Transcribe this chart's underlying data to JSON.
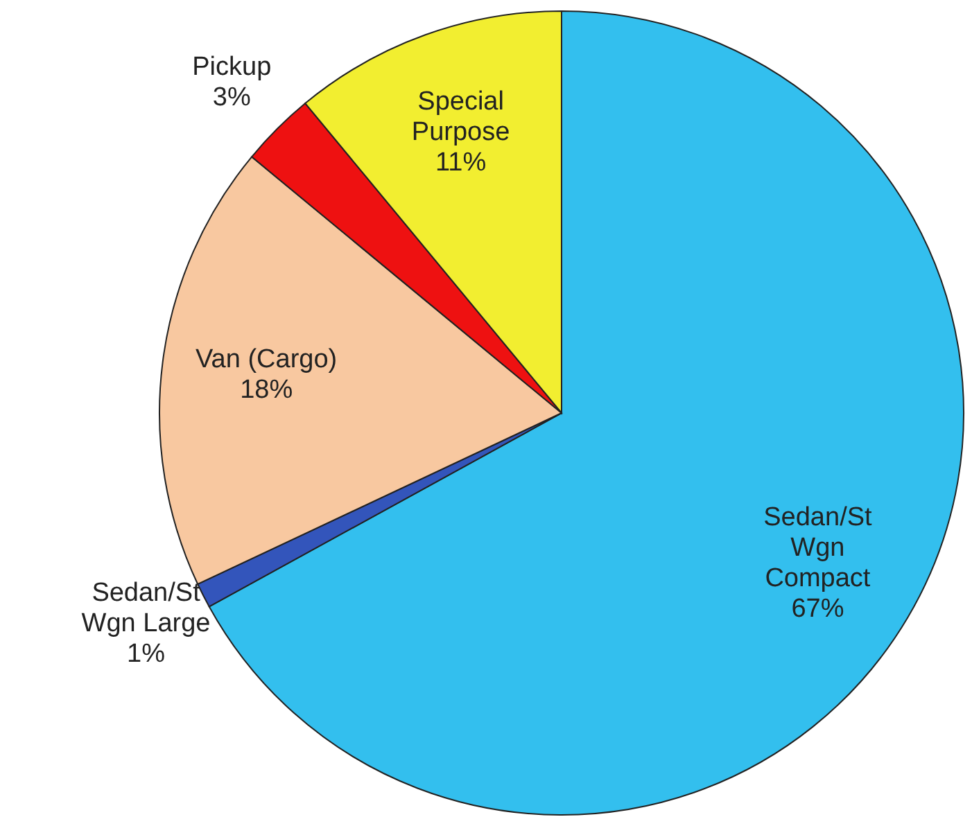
{
  "chart_data": {
    "type": "pie",
    "categories": [
      "Sedan/St Wgn Compact",
      "Sedan/St Wgn Large",
      "Van (Cargo)",
      "Pickup",
      "Special Purpose"
    ],
    "values": [
      67,
      1,
      18,
      3,
      11
    ],
    "value_labels": [
      "67%",
      "1%",
      "18%",
      "3%",
      "11%"
    ],
    "colors": [
      "#33bfee",
      "#3355bb",
      "#f8c8a0",
      "#ee1111",
      "#f2ee30"
    ]
  }
}
